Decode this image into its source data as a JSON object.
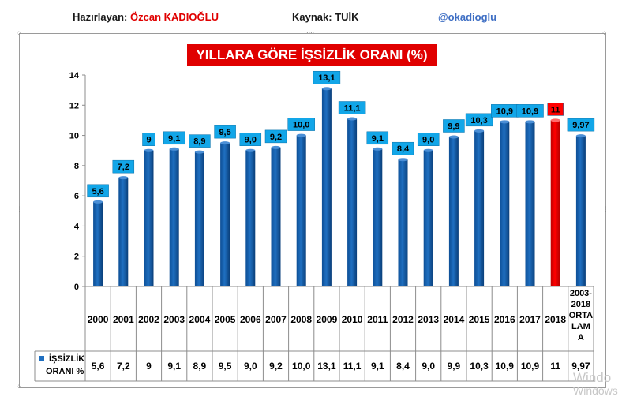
{
  "header": {
    "prepared_label": "Hazırlayan:",
    "prepared_name": "Özcan KADIOĞLU",
    "source_label": "Kaynak:",
    "source_name": "TUİK",
    "twitter": "@okadioglu"
  },
  "watermark": {
    "line1": "Windo",
    "line2": "Windows"
  },
  "colors": {
    "bar": "#1f6fc0",
    "highlight": "#ff0000",
    "label_bg": "#12a6e8",
    "title_bg": "#e00000"
  },
  "chart_data": {
    "type": "bar",
    "title": "YILLARA GÖRE İŞSİZLİK ORANI  (%)",
    "categories": [
      "2000",
      "2001",
      "2002",
      "2003",
      "2004",
      "2005",
      "2006",
      "2007",
      "2008",
      "2009",
      "2010",
      "2011",
      "2012",
      "2013",
      "2014",
      "2015",
      "2016",
      "2017",
      "2018",
      "2003-2018 ORTALAMA"
    ],
    "category_lines": [
      [
        "2000"
      ],
      [
        "2001"
      ],
      [
        "2002"
      ],
      [
        "2003"
      ],
      [
        "2004"
      ],
      [
        "2005"
      ],
      [
        "2006"
      ],
      [
        "2007"
      ],
      [
        "2008"
      ],
      [
        "2009"
      ],
      [
        "2010"
      ],
      [
        "2011"
      ],
      [
        "2012"
      ],
      [
        "2013"
      ],
      [
        "2014"
      ],
      [
        "2015"
      ],
      [
        "2016"
      ],
      [
        "2017"
      ],
      [
        "2018"
      ],
      [
        "2003-",
        "2018",
        "ORTA",
        "LAM",
        "A"
      ]
    ],
    "series": [
      {
        "name": "İŞSİZLİK ORANI %",
        "name_lines": [
          "İŞSİZLİK",
          "ORANI %"
        ],
        "values": [
          5.6,
          7.2,
          9,
          9.1,
          8.9,
          9.5,
          9.0,
          9.2,
          10.0,
          13.1,
          11.1,
          9.1,
          8.4,
          9.0,
          9.9,
          10.3,
          10.9,
          10.9,
          11,
          9.97
        ],
        "labels": [
          "5,6",
          "7,2",
          "9",
          "9,1",
          "8,9",
          "9,5",
          "9,0",
          "9,2",
          "10,0",
          "13,1",
          "11,1",
          "9,1",
          "8,4",
          "9,0",
          "9,9",
          "10,3",
          "10,9",
          "10,9",
          "11",
          "9,97"
        ]
      }
    ],
    "highlight_index": 18,
    "ylim": [
      0,
      14
    ],
    "yticks": [
      0,
      2,
      4,
      6,
      8,
      10,
      12,
      14
    ],
    "xlabel": "",
    "ylabel": "",
    "grid": false,
    "legend": "data-table"
  }
}
